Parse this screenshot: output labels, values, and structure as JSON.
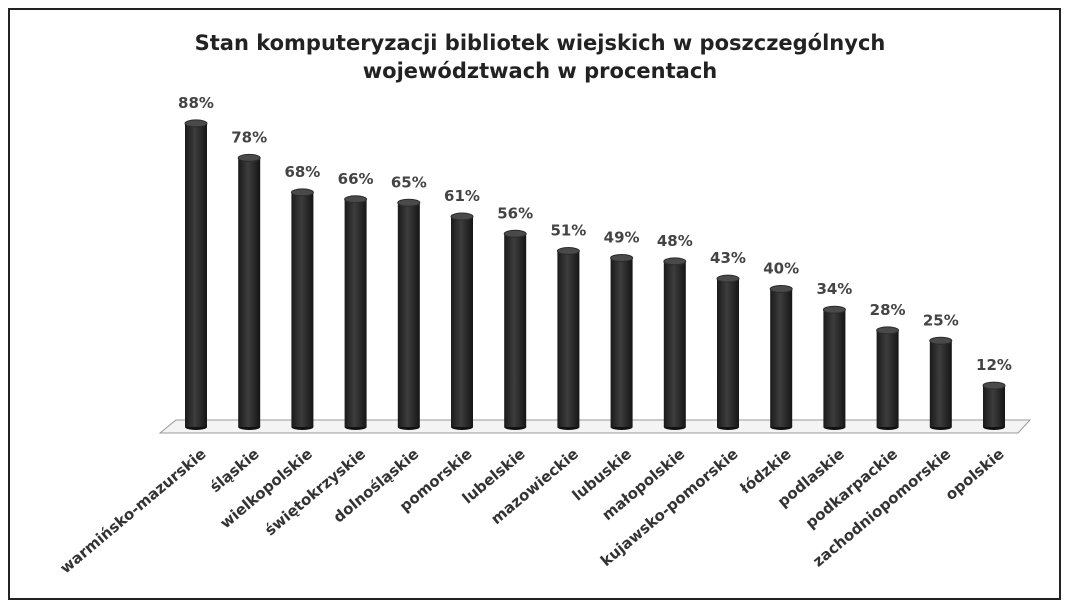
{
  "chart_data": {
    "type": "bar",
    "title": [
      "Stan komputeryzacji bibliotek wiejskich w poszczególnych",
      "województwach w procentach"
    ],
    "categories": [
      "warmińsko-mazurskie",
      "śląskie",
      "wielkopolskie",
      "świętokrzyskie",
      "dolnośląskie",
      "pomorskie",
      "lubelskie",
      "mazowieckie",
      "lubuskie",
      "małopolskie",
      "kujawsko-pomorskie",
      "łódzkie",
      "podlaskie",
      "podkarpackie",
      "zachodniopomorskie",
      "opolskie"
    ],
    "values": [
      88,
      78,
      68,
      66,
      65,
      61,
      56,
      51,
      49,
      48,
      43,
      40,
      34,
      28,
      25,
      12
    ],
    "value_labels": [
      "88%",
      "78%",
      "68%",
      "66%",
      "65%",
      "61%",
      "56%",
      "51%",
      "49%",
      "48%",
      "43%",
      "40%",
      "34%",
      "28%",
      "25%",
      "12%"
    ],
    "color": "#2b2b2b"
  }
}
